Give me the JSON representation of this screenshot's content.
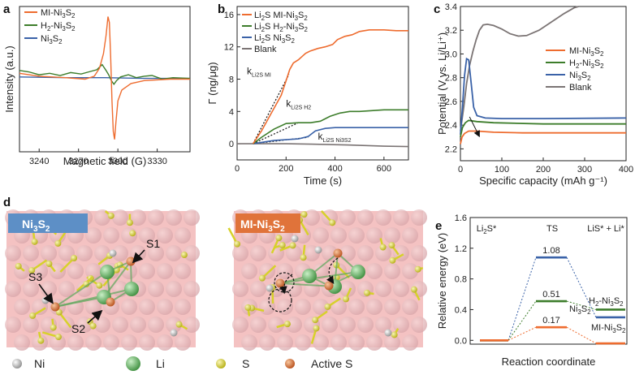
{
  "colors": {
    "mi": "#ee6c2f",
    "h2": "#3d7d2b",
    "ni": "#3a62a8",
    "blank": "#7b7474",
    "slab_bg": "#f4c2c2",
    "atom_ni": "#c8b8be",
    "atom_li": "#5ea85c",
    "atom_s": "#d7d12a",
    "atom_active_s": "#d9702c",
    "title_ni": "#5d8fc6",
    "title_mi": "#e0733a"
  },
  "panel_letters": {
    "a": "a",
    "b": "b",
    "c": "c",
    "d": "d",
    "e": "e"
  },
  "chart_data": [
    {
      "id": "a",
      "type": "line",
      "xlabel": "Magnetic field (G)",
      "ylabel": "Intensity (a.u.)",
      "xlim": [
        3225,
        3355
      ],
      "ylim": [
        -1.0,
        1.0
      ],
      "xticks": [
        3240,
        3270,
        3300,
        3330
      ],
      "legend_position": "top-left",
      "series": [
        {
          "name": "MI-Ni3S2",
          "label": "MI-Ni",
          "sub1": "3",
          "mid": "S",
          "sub2": "2",
          "color_key": "mi",
          "points": [
            [
              3225,
              0.08
            ],
            [
              3240,
              0.04
            ],
            [
              3260,
              0.02
            ],
            [
              3275,
              0.0
            ],
            [
              3282,
              0.04
            ],
            [
              3286,
              0.15
            ],
            [
              3289,
              0.35
            ],
            [
              3291,
              0.6
            ],
            [
              3292.5,
              0.86
            ],
            [
              3293.5,
              0.78
            ],
            [
              3294.5,
              0.3
            ],
            [
              3295.5,
              -0.3
            ],
            [
              3296.5,
              -0.72
            ],
            [
              3297.5,
              -0.83
            ],
            [
              3298.5,
              -0.6
            ],
            [
              3300,
              -0.3
            ],
            [
              3303,
              -0.15
            ],
            [
              3310,
              -0.06
            ],
            [
              3320,
              -0.02
            ],
            [
              3340,
              0.0
            ],
            [
              3355,
              0.0
            ]
          ]
        },
        {
          "name": "H2-Ni3S2",
          "label": "H",
          "sub1": "2",
          "mid": "-Ni",
          "sub2": "3",
          "tail": "S",
          "sub3": "2",
          "color_key": "h2",
          "points": [
            [
              3225,
              0.12
            ],
            [
              3232,
              0.1
            ],
            [
              3240,
              0.06
            ],
            [
              3248,
              0.08
            ],
            [
              3256,
              0.05
            ],
            [
              3264,
              0.09
            ],
            [
              3272,
              0.07
            ],
            [
              3278,
              0.1
            ],
            [
              3284,
              0.13
            ],
            [
              3288,
              0.2
            ],
            [
              3291,
              0.12
            ],
            [
              3293,
              0.06
            ],
            [
              3295,
              -0.02
            ],
            [
              3297,
              -0.07
            ],
            [
              3299,
              -0.02
            ],
            [
              3302,
              0.03
            ],
            [
              3308,
              0.06
            ],
            [
              3314,
              0.02
            ],
            [
              3320,
              0.04
            ],
            [
              3326,
              0.05
            ],
            [
              3334,
              0.0
            ],
            [
              3342,
              0.02
            ],
            [
              3355,
              0.01
            ]
          ]
        },
        {
          "name": "Ni3S2",
          "label": "Ni",
          "sub1": "3",
          "mid": "S",
          "sub2": "2",
          "color_key": "ni",
          "points": [
            [
              3225,
              0.03
            ],
            [
              3260,
              0.02
            ],
            [
              3290,
              0.02
            ],
            [
              3320,
              0.01
            ],
            [
              3355,
              0.01
            ]
          ]
        }
      ]
    },
    {
      "id": "b",
      "type": "line",
      "xlabel": "Time (s)",
      "ylabel": "Γ (ng/μg)",
      "xlim": [
        0,
        700
      ],
      "ylim": [
        -2,
        17
      ],
      "xticks": [
        0,
        200,
        400,
        600
      ],
      "yticks": [
        0,
        4,
        8,
        12,
        16
      ],
      "legend_position": "top-left",
      "series": [
        {
          "name": "Li2S MI-Ni3S2",
          "label": "Li",
          "sub1": "2",
          "mid": "S MI-Ni",
          "sub2": "3",
          "tail": "S",
          "sub3": "2",
          "color_key": "mi",
          "points": [
            [
              65,
              0
            ],
            [
              100,
              1.6
            ],
            [
              140,
              3.8
            ],
            [
              180,
              6.0
            ],
            [
              200,
              7.8
            ],
            [
              215,
              9.2
            ],
            [
              230,
              10.0
            ],
            [
              250,
              10.4
            ],
            [
              265,
              10.8
            ],
            [
              280,
              11.2
            ],
            [
              300,
              11.5
            ],
            [
              330,
              11.8
            ],
            [
              360,
              12.0
            ],
            [
              390,
              12.3
            ],
            [
              410,
              12.9
            ],
            [
              440,
              13.3
            ],
            [
              470,
              13.5
            ],
            [
              500,
              13.9
            ],
            [
              540,
              14.1
            ],
            [
              600,
              14.1
            ],
            [
              650,
              14.0
            ],
            [
              700,
              14.0
            ]
          ]
        },
        {
          "name": "Li2S H2-Ni3S2",
          "label": "Li",
          "sub1": "2",
          "mid": "S H",
          "sub2": "2",
          "tail": "-Ni",
          "sub3": "3",
          "tail2": "S",
          "sub4": "2",
          "color_key": "h2",
          "points": [
            [
              65,
              0
            ],
            [
              100,
              0.8
            ],
            [
              150,
              1.8
            ],
            [
              200,
              2.5
            ],
            [
              250,
              2.6
            ],
            [
              300,
              2.6
            ],
            [
              340,
              2.8
            ],
            [
              380,
              3.4
            ],
            [
              420,
              3.8
            ],
            [
              460,
              4.0
            ],
            [
              500,
              4.0
            ],
            [
              550,
              4.1
            ],
            [
              600,
              4.2
            ],
            [
              700,
              4.2
            ]
          ]
        },
        {
          "name": "Li2S Ni3S2",
          "label": "Li",
          "sub1": "2",
          "mid": "S Ni",
          "sub2": "3",
          "tail": "S",
          "sub3": "2",
          "color_key": "ni",
          "points": [
            [
              65,
              0
            ],
            [
              150,
              0.4
            ],
            [
              250,
              0.6
            ],
            [
              290,
              0.9
            ],
            [
              320,
              1.6
            ],
            [
              360,
              1.9
            ],
            [
              400,
              2.0
            ],
            [
              450,
              2.0
            ],
            [
              500,
              2.0
            ],
            [
              700,
              2.0
            ]
          ]
        },
        {
          "name": "Blank",
          "label": "Blank",
          "color_key": "blank",
          "points": [
            [
              0,
              0
            ],
            [
              200,
              0
            ],
            [
              300,
              -0.05
            ],
            [
              450,
              -0.15
            ],
            [
              600,
              -0.3
            ],
            [
              700,
              -0.35
            ]
          ]
        }
      ],
      "annotations": [
        {
          "text": "k",
          "sub": "Li2S MI",
          "x": 40,
          "y": 8.6,
          "lx1": 65,
          "ly1": 0,
          "lx2": 212,
          "ly2": 8.6
        },
        {
          "text": "k",
          "sub": "Li2S H2",
          "x": 200,
          "y": 4.6,
          "lx1": 65,
          "ly1": 0,
          "lx2": 250,
          "ly2": 2.6
        },
        {
          "text": "k",
          "sub": "Li2S Ni3S2",
          "x": 330,
          "y": 0.5,
          "lx1": 65,
          "ly1": 0,
          "lx2": 290,
          "ly2": 0.8
        }
      ]
    },
    {
      "id": "c",
      "type": "line",
      "xlabel": "Specific capacity (mAh g⁻¹)",
      "ylabel": "Potential (V vs. Li/Li⁺)",
      "xlim": [
        0,
        400
      ],
      "ylim": [
        2.1,
        3.4
      ],
      "xticks": [
        0,
        100,
        200,
        300,
        400
      ],
      "yticks": [
        2.2,
        2.4,
        2.6,
        2.8,
        3.0,
        3.2,
        3.4
      ],
      "legend_position": "right",
      "series": [
        {
          "name": "MI-Ni3S2",
          "label": "MI-Ni",
          "sub1": "3",
          "mid": "S",
          "sub2": "2",
          "color_key": "mi",
          "points": [
            [
              0,
              2.24
            ],
            [
              4,
              2.3
            ],
            [
              10,
              2.33
            ],
            [
              20,
              2.35
            ],
            [
              40,
              2.35
            ],
            [
              80,
              2.34
            ],
            [
              150,
              2.335
            ],
            [
              250,
              2.335
            ],
            [
              400,
              2.335
            ]
          ]
        },
        {
          "name": "H2-Ni3S2",
          "label": "H",
          "sub1": "2",
          "mid": "-Ni",
          "sub2": "3",
          "tail": "S",
          "sub3": "2",
          "color_key": "h2",
          "points": [
            [
              0,
              2.3
            ],
            [
              5,
              2.38
            ],
            [
              12,
              2.42
            ],
            [
              20,
              2.44
            ],
            [
              40,
              2.43
            ],
            [
              80,
              2.42
            ],
            [
              200,
              2.41
            ],
            [
              400,
              2.41
            ]
          ]
        },
        {
          "name": "Ni3S2",
          "label": "Ni",
          "sub1": "3",
          "mid": "S",
          "sub2": "2",
          "color_key": "ni",
          "points": [
            [
              0,
              2.32
            ],
            [
              5,
              2.55
            ],
            [
              10,
              2.82
            ],
            [
              15,
              2.96
            ],
            [
              20,
              2.95
            ],
            [
              26,
              2.75
            ],
            [
              32,
              2.55
            ],
            [
              40,
              2.48
            ],
            [
              60,
              2.46
            ],
            [
              100,
              2.455
            ],
            [
              200,
              2.455
            ],
            [
              400,
              2.46
            ]
          ]
        },
        {
          "name": "Blank",
          "label": "Blank",
          "color_key": "blank",
          "points": [
            [
              0,
              2.35
            ],
            [
              8,
              2.55
            ],
            [
              15,
              2.75
            ],
            [
              22,
              2.9
            ],
            [
              30,
              3.02
            ],
            [
              38,
              3.12
            ],
            [
              46,
              3.2
            ],
            [
              55,
              3.245
            ],
            [
              65,
              3.25
            ],
            [
              80,
              3.24
            ],
            [
              100,
              3.21
            ],
            [
              120,
              3.17
            ],
            [
              140,
              3.15
            ],
            [
              160,
              3.155
            ],
            [
              190,
              3.2
            ],
            [
              220,
              3.27
            ],
            [
              250,
              3.34
            ],
            [
              275,
              3.39
            ],
            [
              285,
              3.4
            ]
          ]
        }
      ],
      "arrow": {
        "from": [
          22,
          2.47
        ],
        "to": [
          45,
          2.31
        ]
      }
    },
    {
      "id": "e",
      "type": "line",
      "xlabel": "Reaction coordinate",
      "ylabel": "Relative energy (eV)",
      "ylim": [
        -0.05,
        1.6
      ],
      "yticks": [
        0.0,
        0.4,
        0.8,
        1.2,
        1.6
      ],
      "column_labels": [
        {
          "text": "Li",
          "sub": "2",
          "tail": "S*"
        },
        {
          "text": "TS"
        },
        {
          "text": "LiS* + Li*"
        }
      ],
      "series": [
        {
          "name": "Ni3S2",
          "label": "Ni",
          "sub1": "3",
          "mid": "S",
          "sub2": "2",
          "color_key": "ni",
          "values": [
            0.0,
            1.08,
            0.3
          ],
          "ts_label": "1.08"
        },
        {
          "name": "H2-Ni3S2",
          "label": "H",
          "sub1": "2",
          "mid": "-Ni",
          "sub2": "3",
          "tail": "S",
          "sub3": "2",
          "color_key": "h2",
          "values": [
            0.0,
            0.51,
            0.4
          ],
          "ts_label": "0.51"
        },
        {
          "name": "MI-Ni3S2",
          "label": "MI-Ni",
          "sub1": "3",
          "mid": "S",
          "sub2": "2",
          "color_key": "mi",
          "values": [
            0.0,
            0.17,
            -0.04
          ],
          "ts_label": "0.17"
        }
      ]
    }
  ],
  "structures": {
    "left_title": {
      "a": "Ni",
      "s1": "3",
      "b": "S",
      "s2": "2"
    },
    "right_title": {
      "a": "MI-Ni",
      "s1": "3",
      "b": "S",
      "s2": "2"
    },
    "site_labels": [
      "S1",
      "S2",
      "S3"
    ]
  },
  "legend_d": [
    "Ni",
    "Li",
    "S",
    "Active S"
  ]
}
